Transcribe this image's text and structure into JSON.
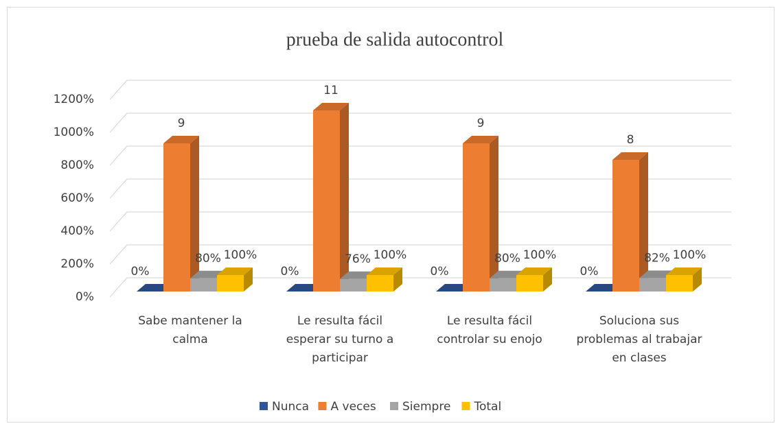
{
  "chart_data": {
    "type": "bar3d",
    "title": "prueba de salida autocontrol",
    "categories": [
      "Sabe mantener la calma",
      "Le resulta fácil esperar su turno a participar",
      "Le resulta fácil controlar su enojo",
      "Soluciona sus problemas al trabajar en clases"
    ],
    "series": [
      {
        "name": "Nunca",
        "color": "#2f5597",
        "values": [
          0,
          0,
          0,
          0
        ],
        "value_labels": [
          "0%",
          "0%",
          "0%",
          "0%"
        ]
      },
      {
        "name": "A veces",
        "color": "#ed7d31",
        "values": [
          900,
          1100,
          900,
          800
        ],
        "value_labels": [
          "9",
          "11",
          "9",
          "8"
        ]
      },
      {
        "name": "Siempre",
        "color": "#a5a5a5",
        "values": [
          80,
          76,
          80,
          82
        ],
        "value_labels": [
          "80%",
          "76%",
          "80%",
          "82%"
        ]
      },
      {
        "name": "Total",
        "color": "#ffc000",
        "values": [
          100,
          100,
          100,
          100
        ],
        "value_labels": [
          "100%",
          "100%",
          "100%",
          "100%"
        ]
      }
    ],
    "ylim": [
      0,
      1200
    ],
    "yticks": [
      {
        "value": 0,
        "label": "0%"
      },
      {
        "value": 200,
        "label": "200%"
      },
      {
        "value": 400,
        "label": "400%"
      },
      {
        "value": 600,
        "label": "600%"
      },
      {
        "value": 800,
        "label": "800%"
      },
      {
        "value": 1000,
        "label": "1000%"
      },
      {
        "value": 1200,
        "label": "1200%"
      }
    ],
    "grid": true,
    "legend": "bottom"
  }
}
